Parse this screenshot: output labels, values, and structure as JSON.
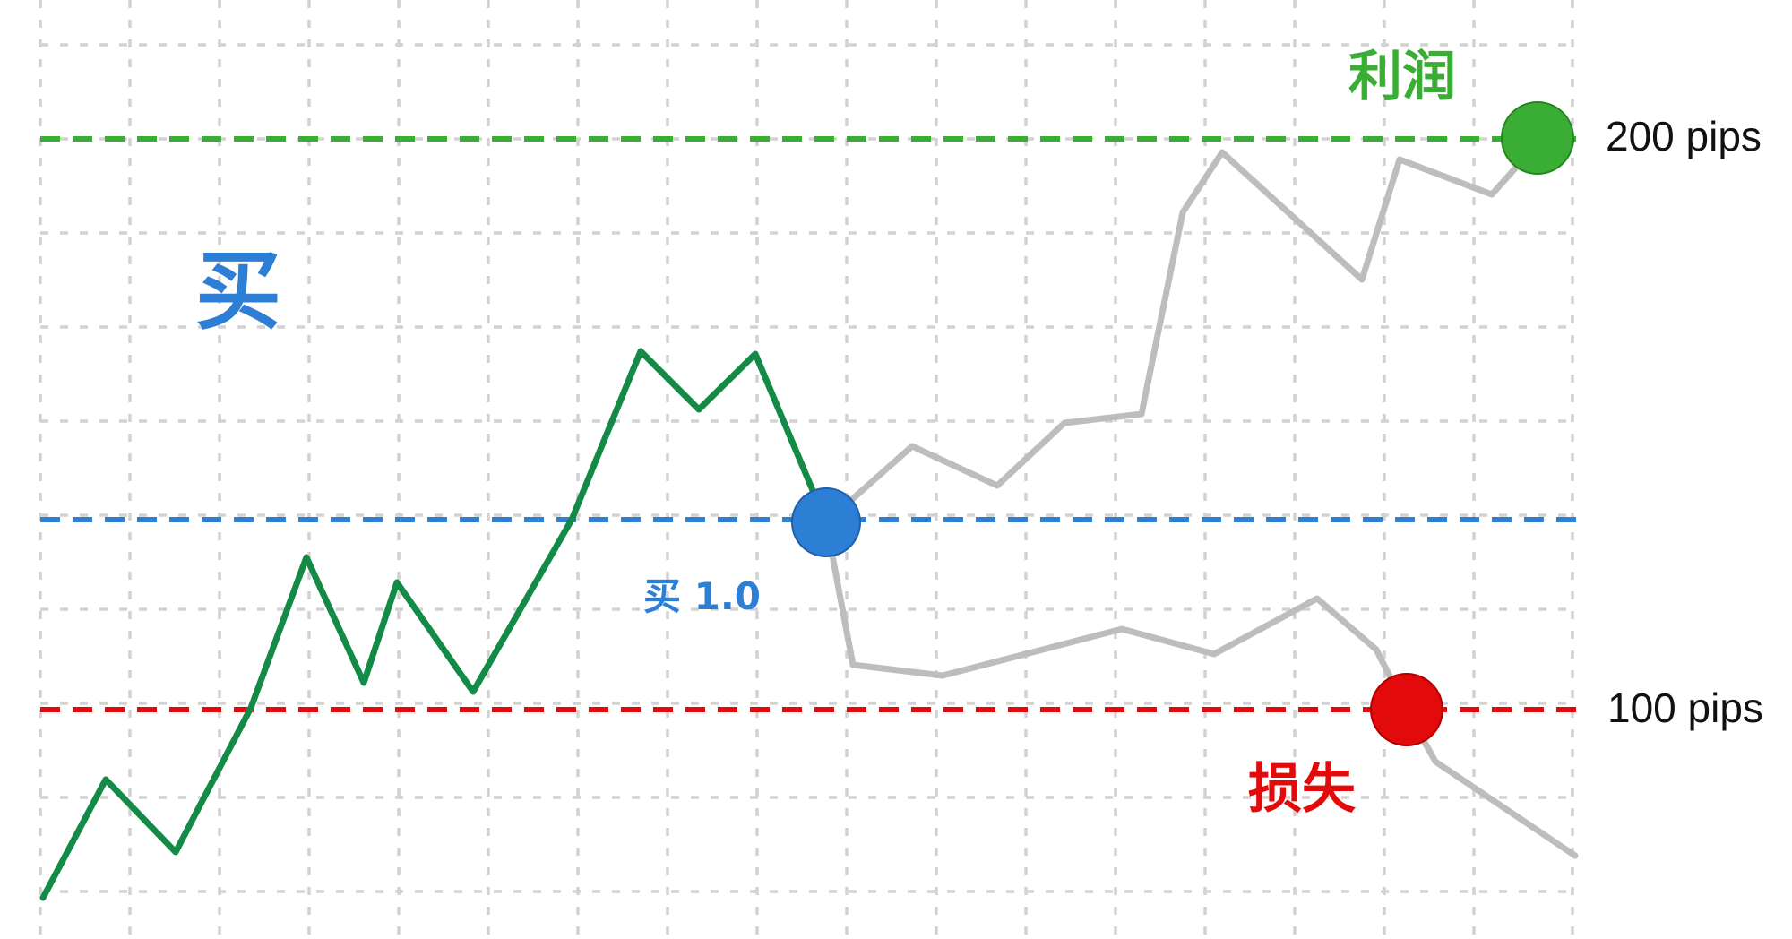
{
  "colors": {
    "profit": "#3aad34",
    "entry": "#2d7fd6",
    "loss": "#e20a0a",
    "history_line": "#138a46",
    "projection_line": "#bdbdbd",
    "grid": "#d2d2d2"
  },
  "labels": {
    "direction": "买",
    "entry": "买 1.0",
    "profit": "利润",
    "loss": "损失",
    "take_profit_pips": "200 pips",
    "stop_loss_pips": "100 pips"
  },
  "levels": {
    "take_profit": "200 pips",
    "entry": "买 1.0",
    "stop_loss": "100 pips"
  }
}
